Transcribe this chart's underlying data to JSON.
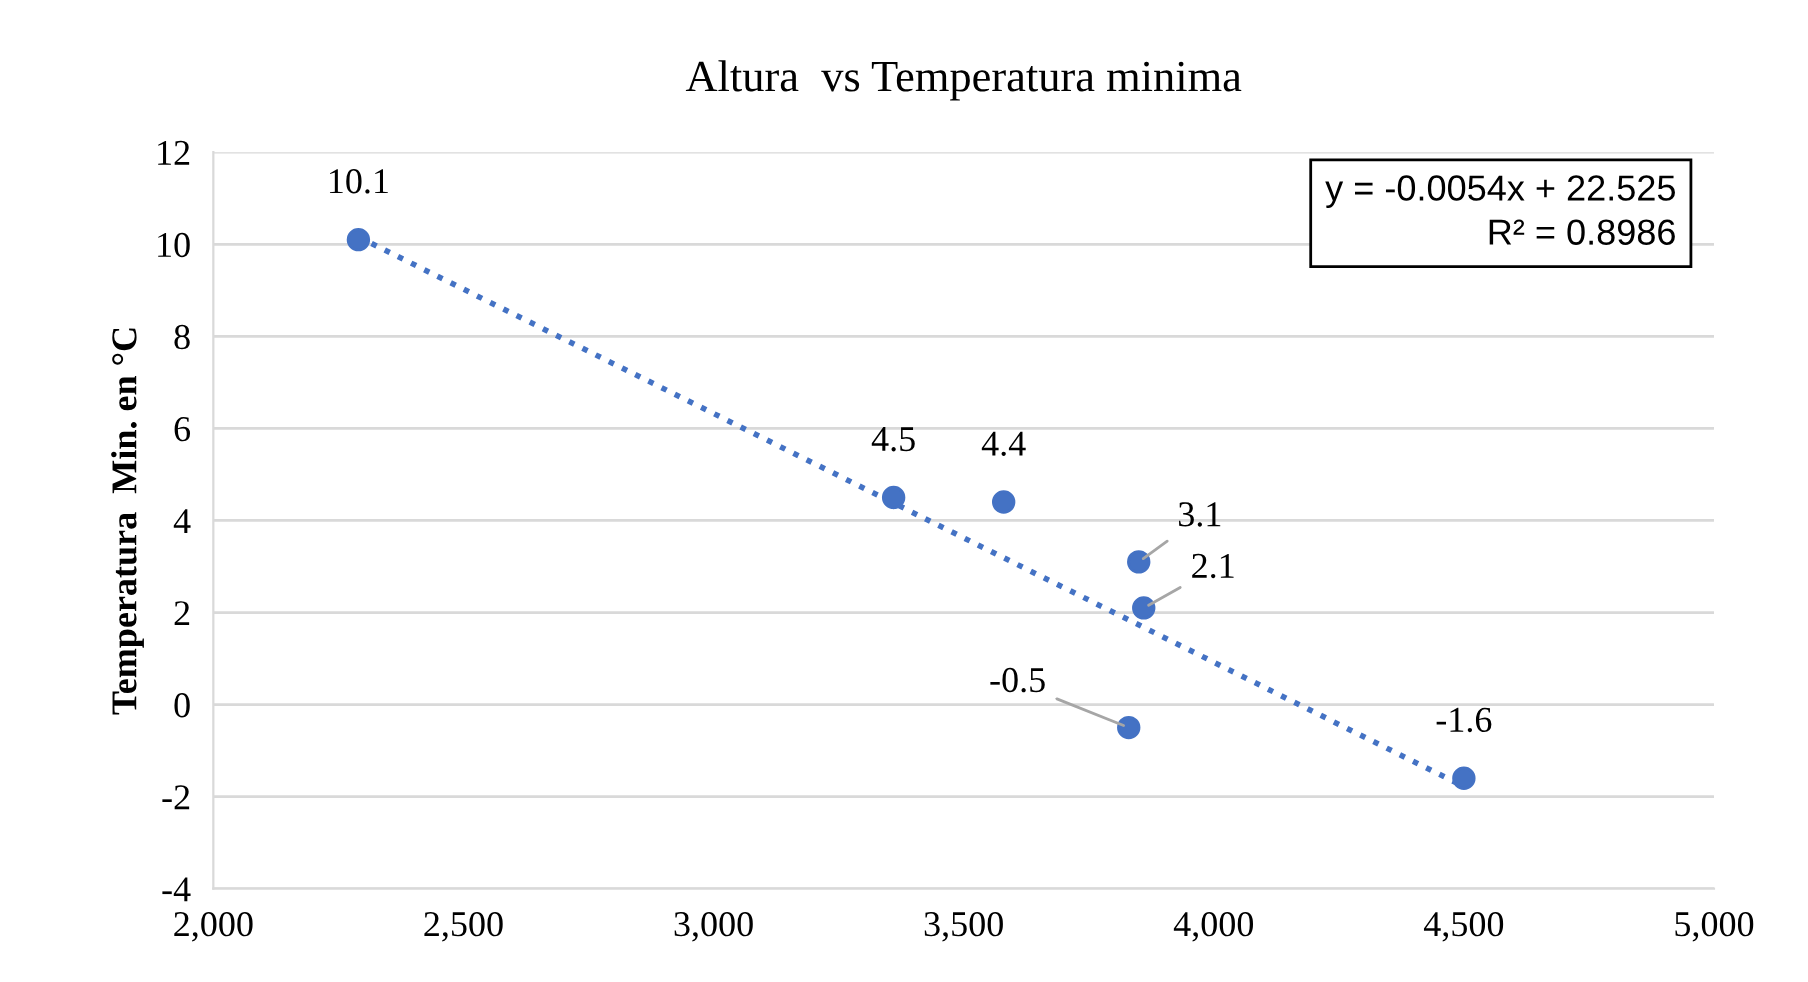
{
  "chart_data": {
    "type": "scatter",
    "title": "Altura  vs Temperatura minima",
    "ylabel": "Temperatura  Min. en °C",
    "series": [
      {
        "color": "#4472c4",
        "x": [
          2290,
          3360,
          3580,
          3850,
          3860,
          3830,
          4500
        ],
        "values": [
          10.1,
          4.5,
          4.4,
          3.1,
          2.1,
          -0.5,
          -1.6
        ],
        "data_labels": true,
        "marker": "circle"
      },
      {
        "type": "line",
        "color": "#4472c4",
        "x": [
          2290,
          4500
        ],
        "values": [
          10.16,
          -1.78
        ],
        "line_style": "dotted",
        "marker": "none"
      }
    ],
    "annotations": [
      "y = -0.0054x + 22.525\nR² = 0.8986"
    ],
    "xlim": [
      2000,
      5000
    ],
    "xticks": [
      {
        "value": 2000,
        "label": "2,000"
      },
      {
        "value": 2500,
        "label": "2,500"
      },
      {
        "value": 3000,
        "label": "3,000"
      },
      {
        "value": 3500,
        "label": "3,500"
      },
      {
        "value": 4000,
        "label": "4,000"
      },
      {
        "value": 4500,
        "label": "4,500"
      },
      {
        "value": 5000,
        "label": "5,000"
      }
    ],
    "ylim": [
      -4,
      12
    ],
    "yticks": [
      -4,
      -2,
      0,
      2,
      4,
      6,
      8,
      10,
      12
    ],
    "grid": "y",
    "legend": false
  }
}
